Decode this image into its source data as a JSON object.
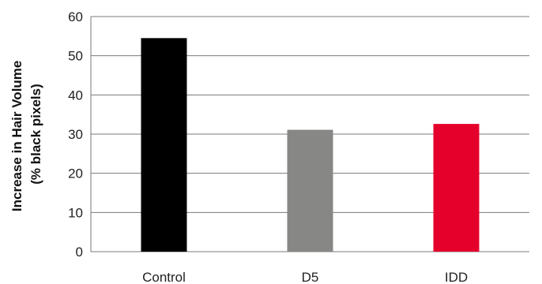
{
  "chart_data": {
    "type": "bar",
    "title": "",
    "xlabel": "",
    "ylabel_lines": [
      "Increase in Hair Volume",
      "(% black pixels)"
    ],
    "categories": [
      "Control",
      "D5",
      "IDD"
    ],
    "values": [
      54.5,
      31.1,
      32.6
    ],
    "bar_colors": [
      "#000000",
      "#878785",
      "#e4002b"
    ],
    "ylim": [
      0,
      60
    ],
    "yticks": [
      0,
      10,
      20,
      30,
      40,
      50,
      60
    ],
    "grid": "horizontal",
    "legend": "none"
  }
}
